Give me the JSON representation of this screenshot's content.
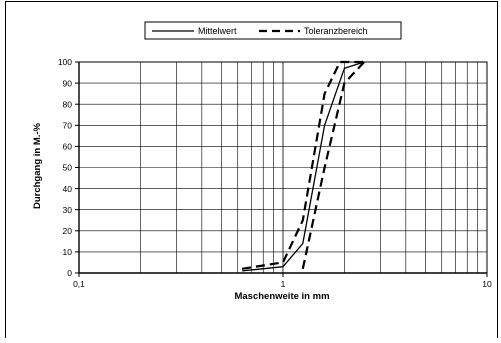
{
  "chart_data": {
    "type": "line",
    "xscale": "log",
    "xlim": [
      0.1,
      10
    ],
    "ylim": [
      0,
      100
    ],
    "xlabel": "Maschenweite in mm",
    "ylabel": "Durchgang in M.-%",
    "x_ticks": [
      "0,1",
      "1",
      "10"
    ],
    "y_ticks": [
      "0",
      "10",
      "20",
      "30",
      "40",
      "50",
      "60",
      "70",
      "80",
      "90",
      "100"
    ],
    "grid": true,
    "legend_position": "top-center",
    "series": [
      {
        "name": "Mittelwert",
        "style": "solid",
        "color": "#000000",
        "x": [
          0.63,
          1.0,
          1.25,
          1.6,
          2.0,
          2.5
        ],
        "y": [
          1,
          3,
          14,
          70,
          97,
          100
        ]
      },
      {
        "name": "Toleranzbereich",
        "style": "dashed",
        "color": "#000000",
        "x": [
          0.63,
          1.0,
          1.25,
          1.6,
          1.9,
          2.5
        ],
        "y": [
          2,
          5,
          25,
          85,
          100,
          100
        ]
      },
      {
        "name": "",
        "style": "dashed",
        "color": "#000000",
        "x": [
          1.25,
          1.6,
          2.0,
          2.5
        ],
        "y": [
          2,
          50,
          90,
          100
        ]
      }
    ]
  }
}
